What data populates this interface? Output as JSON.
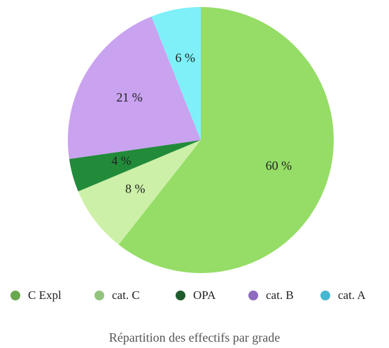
{
  "chart_data": {
    "type": "pie",
    "title": "Répartition des effectifs par grade",
    "categories": [
      "C Expl",
      "cat. C",
      "OPA",
      "cat. B",
      "cat. A"
    ],
    "values": [
      60,
      8,
      4,
      21,
      6
    ],
    "value_labels": [
      "60 %",
      "8 %",
      "4 %",
      "21 %",
      "6 %"
    ],
    "colors": [
      "#95dd66",
      "#cdf0a8",
      "#228b3a",
      "#c9a2f0",
      "#7ff0f8"
    ],
    "legend_colors": [
      "#6aa84f",
      "#93c47d",
      "#1e5c2b",
      "#8e6bbf",
      "#45b8d0"
    ],
    "legend": "bottom"
  }
}
